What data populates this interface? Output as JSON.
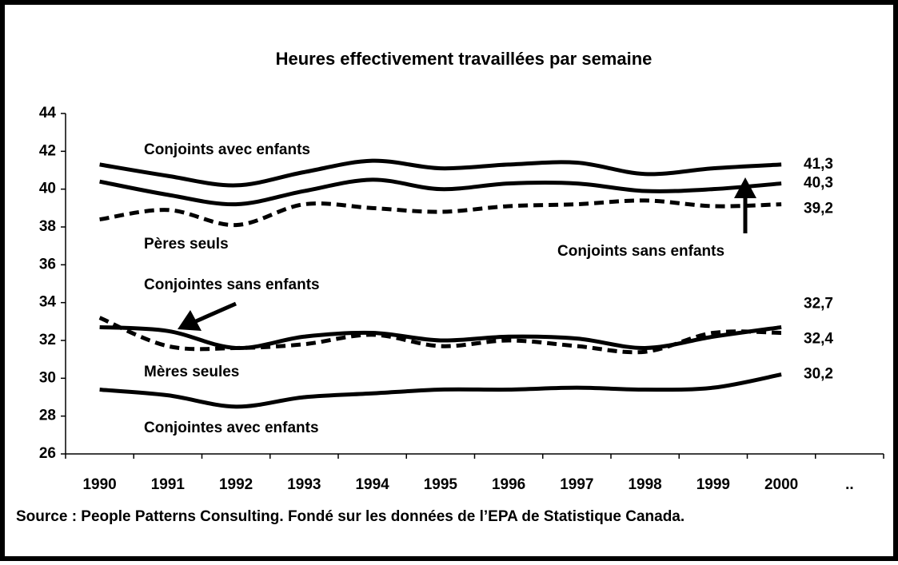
{
  "chart_data": {
    "type": "line",
    "title": "Heures effectivement travaillées par semaine",
    "source": "Source : People Patterns Consulting. Fondé sur les données de l’EPA de Statistique Canada.",
    "categories": [
      "1990",
      "1991",
      "1992",
      "1993",
      "1994",
      "1995",
      "1996",
      "1997",
      "1998",
      "1999",
      "2000",
      ".."
    ],
    "ylim": [
      26,
      44
    ],
    "yticks": [
      26,
      28,
      30,
      32,
      34,
      36,
      38,
      40,
      42,
      44
    ],
    "grid": false,
    "series": [
      {
        "name": "Conjoints avec enfants",
        "color": "#000000",
        "dashed": false,
        "values": [
          41.3,
          40.7,
          40.2,
          40.9,
          41.5,
          41.1,
          41.3,
          41.4,
          40.8,
          41.1,
          41.3,
          null
        ],
        "value_labels": [
          null,
          null,
          null,
          null,
          null,
          null,
          null,
          null,
          null,
          null,
          "41,3",
          null
        ]
      },
      {
        "name": "Conjoints sans enfants",
        "color": "#000000",
        "dashed": false,
        "values": [
          40.4,
          39.7,
          39.2,
          39.9,
          40.5,
          40.0,
          40.3,
          40.3,
          39.9,
          40.0,
          40.3,
          null
        ],
        "value_labels": [
          null,
          null,
          null,
          null,
          null,
          null,
          null,
          null,
          null,
          null,
          "40,3",
          null
        ]
      },
      {
        "name": "Pères seuls",
        "color": "#000000",
        "dashed": true,
        "values": [
          38.4,
          38.9,
          38.1,
          39.2,
          39.0,
          38.8,
          39.1,
          39.2,
          39.4,
          39.1,
          39.2,
          null
        ],
        "value_labels": [
          null,
          null,
          null,
          null,
          null,
          null,
          null,
          null,
          null,
          null,
          "39,2",
          null
        ]
      },
      {
        "name": "Conjointes sans enfants",
        "color": "#000000",
        "dashed": false,
        "values": [
          32.7,
          32.5,
          31.6,
          32.2,
          32.4,
          32.0,
          32.2,
          32.1,
          31.6,
          32.2,
          32.7,
          null
        ],
        "value_labels": [
          null,
          null,
          null,
          null,
          null,
          null,
          null,
          null,
          null,
          null,
          "32,7",
          null
        ]
      },
      {
        "name": "Mères seules",
        "color": "#000000",
        "dashed": true,
        "values": [
          33.2,
          31.7,
          31.6,
          31.8,
          32.3,
          31.7,
          32.0,
          31.7,
          31.4,
          32.4,
          32.4,
          null
        ],
        "value_labels": [
          null,
          null,
          null,
          null,
          null,
          null,
          null,
          null,
          null,
          null,
          "32,4",
          null
        ]
      },
      {
        "name": "Conjointes avec enfants",
        "color": "#000000",
        "dashed": false,
        "values": [
          29.4,
          29.1,
          28.5,
          29.0,
          29.2,
          29.4,
          29.4,
          29.5,
          29.4,
          29.5,
          30.2,
          null
        ],
        "value_labels": [
          null,
          null,
          null,
          null,
          null,
          null,
          null,
          null,
          null,
          null,
          "30,2",
          null
        ]
      }
    ]
  }
}
